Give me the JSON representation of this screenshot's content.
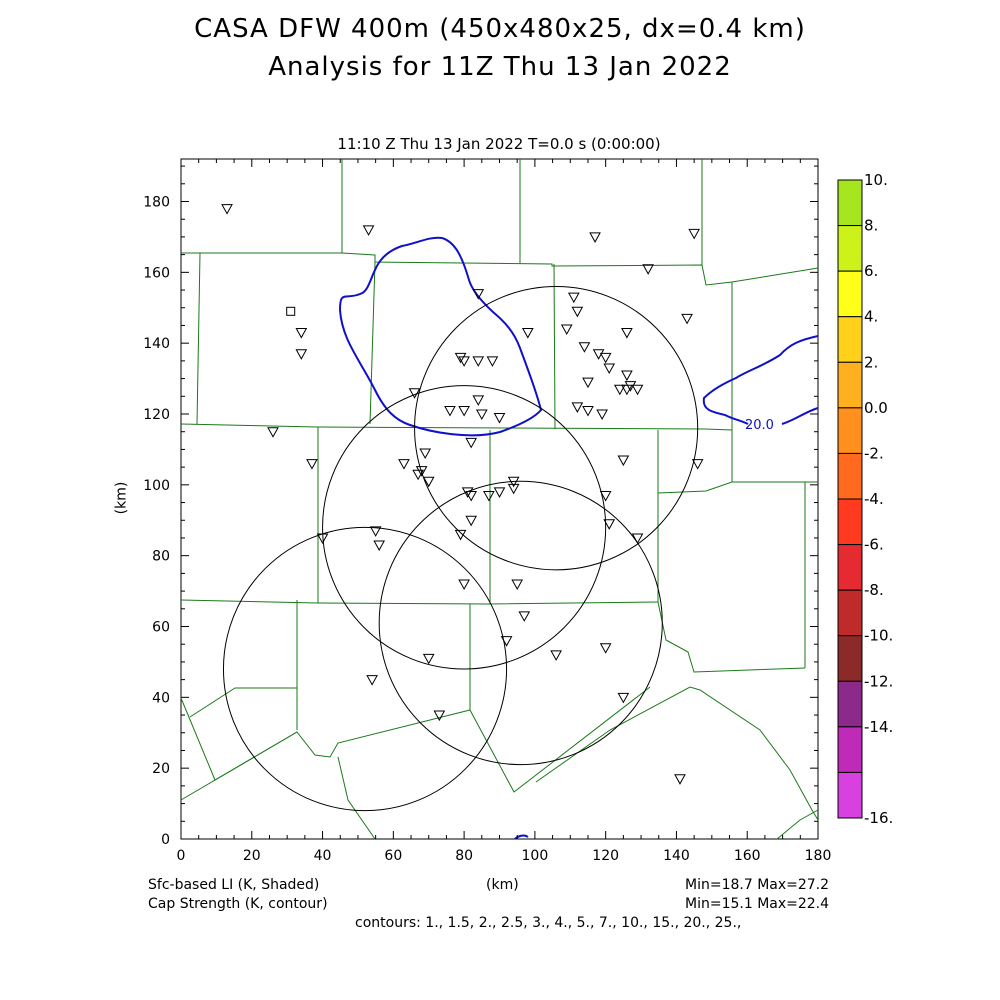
{
  "title_line1": "CASA DFW 400m (450x480x25, dx=0.4 km)",
  "title_line2": "Analysis for 11Z Thu 13 Jan 2022",
  "plot_subtitle": "11:10 Z Thu 13 Jan 2022   T=0.0 s (0:00:00)",
  "axis": {
    "xlabel": "(km)",
    "ylabel": "(km)",
    "xlim": [
      0,
      180
    ],
    "ylim": [
      0,
      192
    ],
    "xticks": [
      0,
      20,
      40,
      60,
      80,
      100,
      120,
      140,
      160,
      180
    ],
    "yticks": [
      0,
      20,
      40,
      60,
      80,
      100,
      120,
      140,
      160,
      180
    ]
  },
  "colorbar": {
    "labels": [
      "10.",
      "8.",
      "6.",
      "4.",
      "2.",
      "0.0",
      "-2.",
      "-4.",
      "-6.",
      "-8.",
      "-10.",
      "-12.",
      "-14.",
      "-16."
    ],
    "colors": [
      "#a6e61e",
      "#ccf21a",
      "#ffff1a",
      "#ffd11a",
      "#ffb01e",
      "#ff901e",
      "#ff6a1e",
      "#ff3a1e",
      "#e62a32",
      "#bf2a2a",
      "#8c2a2a",
      "#8c2a8c",
      "#c02ab8",
      "#d840e0"
    ]
  },
  "footer": {
    "left1": "Sfc-based LI (K, Shaded)",
    "left2": "Cap Strength (K, contour)",
    "right1": "Min=18.7 Max=27.2",
    "right2": "Min=15.1 Max=22.4",
    "contours": "contours: 1., 1.5, 2., 2.5, 3., 4., 5., 7., 10., 15., 20., 25.,"
  },
  "contour_label": "20.0",
  "radar_rings_km": [
    {
      "cx": 52,
      "cy": 48,
      "r": 40
    },
    {
      "cx": 80,
      "cy": 88,
      "r": 40
    },
    {
      "cx": 106,
      "cy": 116,
      "r": 40
    },
    {
      "cx": 96,
      "cy": 61,
      "r": 40
    }
  ],
  "stations_km": [
    [
      13,
      178
    ],
    [
      53,
      172
    ],
    [
      117,
      170
    ],
    [
      145,
      171
    ],
    [
      132,
      161
    ],
    [
      84,
      154
    ],
    [
      111,
      153
    ],
    [
      143,
      147
    ],
    [
      34,
      143
    ],
    [
      98,
      143
    ],
    [
      112,
      149
    ],
    [
      109,
      144
    ],
    [
      126,
      143
    ],
    [
      114,
      139
    ],
    [
      118,
      137
    ],
    [
      120,
      136
    ],
    [
      79,
      136
    ],
    [
      80,
      135
    ],
    [
      84,
      135
    ],
    [
      88,
      135
    ],
    [
      34,
      137
    ],
    [
      121,
      133
    ],
    [
      126,
      131
    ],
    [
      127,
      128
    ],
    [
      124,
      127
    ],
    [
      129,
      127
    ],
    [
      126,
      127
    ],
    [
      66,
      126
    ],
    [
      115,
      129
    ],
    [
      84,
      124
    ],
    [
      76,
      121
    ],
    [
      80,
      121
    ],
    [
      85,
      120
    ],
    [
      90,
      119
    ],
    [
      112,
      122
    ],
    [
      115,
      121
    ],
    [
      119,
      120
    ],
    [
      26,
      115
    ],
    [
      82,
      112
    ],
    [
      69,
      109
    ],
    [
      125,
      107
    ],
    [
      37,
      106
    ],
    [
      63,
      106
    ],
    [
      68,
      104
    ],
    [
      67,
      103
    ],
    [
      70,
      101
    ],
    [
      94,
      101
    ],
    [
      81,
      98
    ],
    [
      82,
      97
    ],
    [
      87,
      97
    ],
    [
      90,
      98
    ],
    [
      94,
      99
    ],
    [
      120,
      97
    ],
    [
      121,
      89
    ],
    [
      82,
      90
    ],
    [
      79,
      86
    ],
    [
      129,
      85
    ],
    [
      55,
      87
    ],
    [
      40,
      85
    ],
    [
      56,
      83
    ],
    [
      80,
      72
    ],
    [
      95,
      72
    ],
    [
      97,
      63
    ],
    [
      92,
      56
    ],
    [
      120,
      54
    ],
    [
      106,
      52
    ],
    [
      70,
      51
    ],
    [
      54,
      45
    ],
    [
      125,
      40
    ],
    [
      73,
      35
    ],
    [
      141,
      17
    ],
    [
      146,
      106
    ]
  ],
  "square_station_km": [
    31,
    149
  ]
}
